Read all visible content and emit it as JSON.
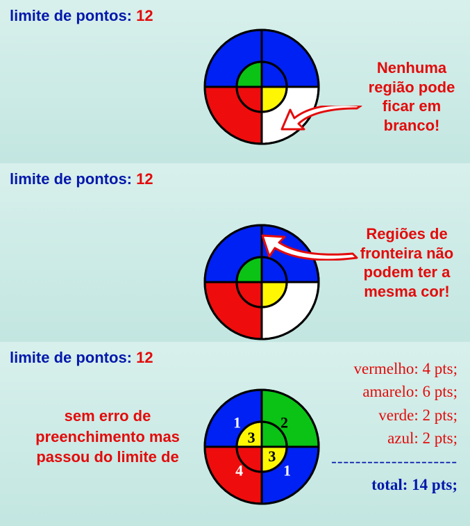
{
  "colors": {
    "blue": "#0021f3",
    "red": "#ef0c0d",
    "green": "#0ac315",
    "yellow": "#fff603",
    "white": "#ffffff",
    "outline": "#000000",
    "accent_text": "#e30b0b",
    "label_text": "#0418ab"
  },
  "circle": {
    "outer_radius": 82,
    "inner_radius": 36,
    "stroke_width": 3
  },
  "panel1": {
    "limit_label": "limite de pontos:",
    "limit_value": "12",
    "callout": "Nenhuma região pode ficar em branco!",
    "outer_colors": {
      "tl": "blue",
      "tr": "blue",
      "bl": "red",
      "br": "white"
    },
    "inner_colors": {
      "tl": "green",
      "tr": "blue",
      "bl": "red",
      "br": "yellow"
    }
  },
  "panel2": {
    "limit_label": "limite de pontos:",
    "limit_value": "12",
    "callout": "Regiões de fronteira não podem ter a mesma cor!",
    "outer_colors": {
      "tl": "blue",
      "tr": "blue",
      "bl": "red",
      "br": "white"
    },
    "inner_colors": {
      "tl": "green",
      "tr": "blue",
      "bl": "red",
      "br": "yellow"
    }
  },
  "panel3": {
    "limit_label": "limite de pontos:",
    "limit_value": "12",
    "sub_msg": "sem erro de preenchimento mas passou do limite de",
    "outer_colors": {
      "tl": "blue",
      "tr": "green",
      "bl": "red",
      "br": "blue"
    },
    "inner_colors": {
      "tl": "yellow",
      "tr": "green",
      "bl": "red",
      "br": "yellow"
    },
    "labels": {
      "outer_tl": "1",
      "outer_tr": "2",
      "outer_bl": "4",
      "outer_br": "1",
      "inner_tl": "3",
      "inner_br": "3"
    },
    "scores": {
      "lines": [
        "vermelho: 4 pts;",
        "amarelo: 6 pts;",
        "verde: 2 pts;",
        "azul: 2 pts;"
      ],
      "sep": "---------------------",
      "total": "total: 14 pts;"
    }
  }
}
